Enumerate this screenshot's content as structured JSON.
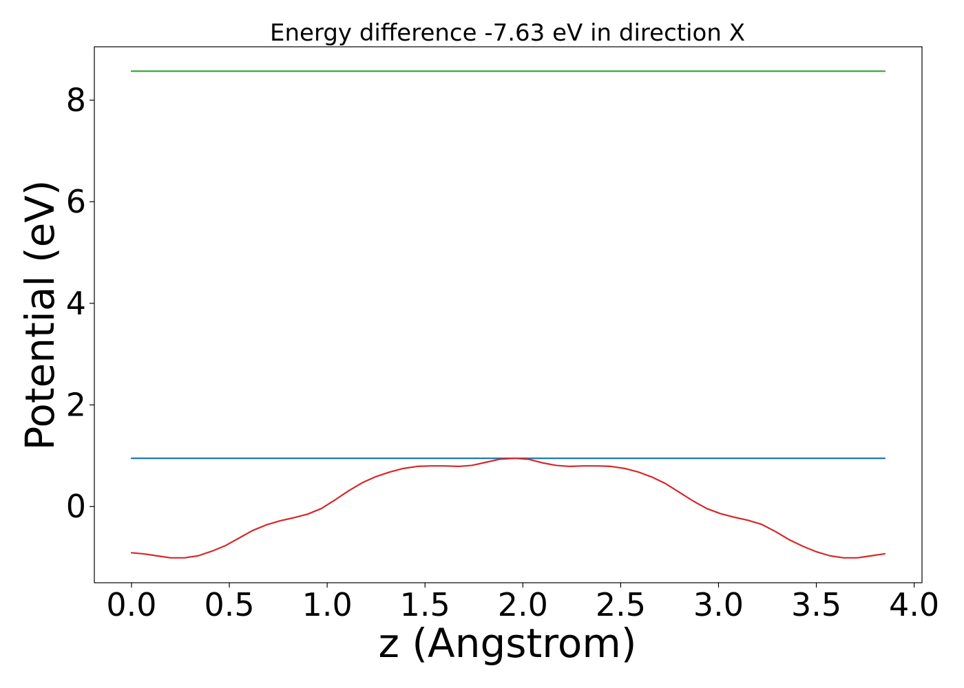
{
  "chart_data": {
    "type": "line",
    "title": "Energy difference -7.63 eV in direction X",
    "xlabel": "z (Angstrom)",
    "ylabel": "Potential (eV)",
    "xlim": [
      -0.19,
      4.04
    ],
    "ylim": [
      -1.5,
      9.05
    ],
    "xticks": [
      0.0,
      0.5,
      1.0,
      1.5,
      2.0,
      2.5,
      3.0,
      3.5,
      4.0
    ],
    "xtick_labels": [
      "0.0",
      "0.5",
      "1.0",
      "1.5",
      "2.0",
      "2.5",
      "3.0",
      "3.5",
      "4.0"
    ],
    "yticks": [
      0,
      2,
      4,
      6,
      8
    ],
    "ytick_labels": [
      "0",
      "2",
      "4",
      "6",
      "8"
    ],
    "grid": false,
    "legend": null,
    "series": [
      {
        "color": "#2ca02c",
        "x": [
          0.0,
          3.85
        ],
        "y": [
          8.57,
          8.57
        ]
      },
      {
        "color": "#1f77b4",
        "x": [
          0.0,
          3.85
        ],
        "y": [
          0.95,
          0.95
        ]
      },
      {
        "color": "#d62728",
        "x": [
          0.0,
          0.06,
          0.13,
          0.2,
          0.27,
          0.34,
          0.41,
          0.48,
          0.55,
          0.62,
          0.69,
          0.76,
          0.83,
          0.9,
          0.97,
          1.04,
          1.11,
          1.18,
          1.25,
          1.32,
          1.39,
          1.46,
          1.53,
          1.6,
          1.67,
          1.74,
          1.81,
          1.88,
          1.96,
          2.03,
          2.1,
          2.17,
          2.24,
          2.31,
          2.38,
          2.45,
          2.52,
          2.59,
          2.66,
          2.73,
          2.8,
          2.87,
          2.94,
          3.01,
          3.08,
          3.15,
          3.22,
          3.29,
          3.36,
          3.43,
          3.5,
          3.57,
          3.64,
          3.71,
          3.78,
          3.85
        ],
        "y": [
          -0.91,
          -0.93,
          -0.97,
          -1.01,
          -1.01,
          -0.97,
          -0.88,
          -0.77,
          -0.62,
          -0.47,
          -0.36,
          -0.28,
          -0.22,
          -0.15,
          -0.04,
          0.13,
          0.31,
          0.47,
          0.59,
          0.68,
          0.75,
          0.79,
          0.8,
          0.8,
          0.79,
          0.81,
          0.87,
          0.93,
          0.95,
          0.93,
          0.86,
          0.81,
          0.79,
          0.8,
          0.8,
          0.79,
          0.75,
          0.68,
          0.58,
          0.45,
          0.28,
          0.11,
          -0.04,
          -0.14,
          -0.21,
          -0.27,
          -0.35,
          -0.49,
          -0.65,
          -0.78,
          -0.89,
          -0.97,
          -1.01,
          -1.01,
          -0.97,
          -0.93
        ]
      }
    ]
  }
}
